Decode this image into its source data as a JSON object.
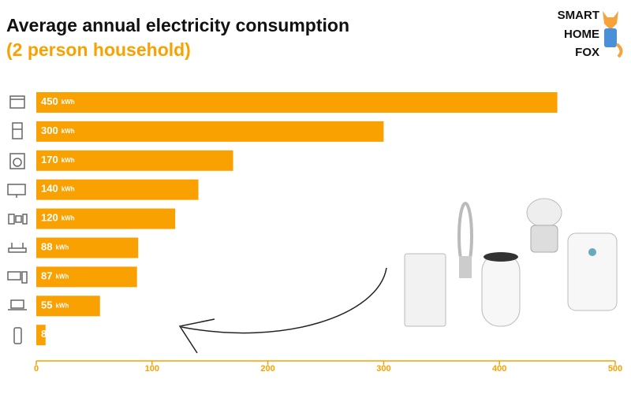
{
  "chart_data": {
    "type": "bar",
    "orientation": "horizontal",
    "title": "Average annual electricity consumption",
    "subtitle": "(2 person household)",
    "categories": [
      null,
      null,
      null,
      null,
      null,
      null,
      null,
      null,
      null
    ],
    "values": [
      450,
      300,
      170,
      140,
      120,
      88,
      87,
      55,
      8
    ],
    "unit": "kWh",
    "color": "#f9a100",
    "xlim": [
      0,
      500
    ],
    "xticks": [
      0,
      100,
      200,
      300,
      400,
      500
    ],
    "grid": false
  },
  "logo": [
    "SMART",
    "HOME",
    "FOX"
  ]
}
